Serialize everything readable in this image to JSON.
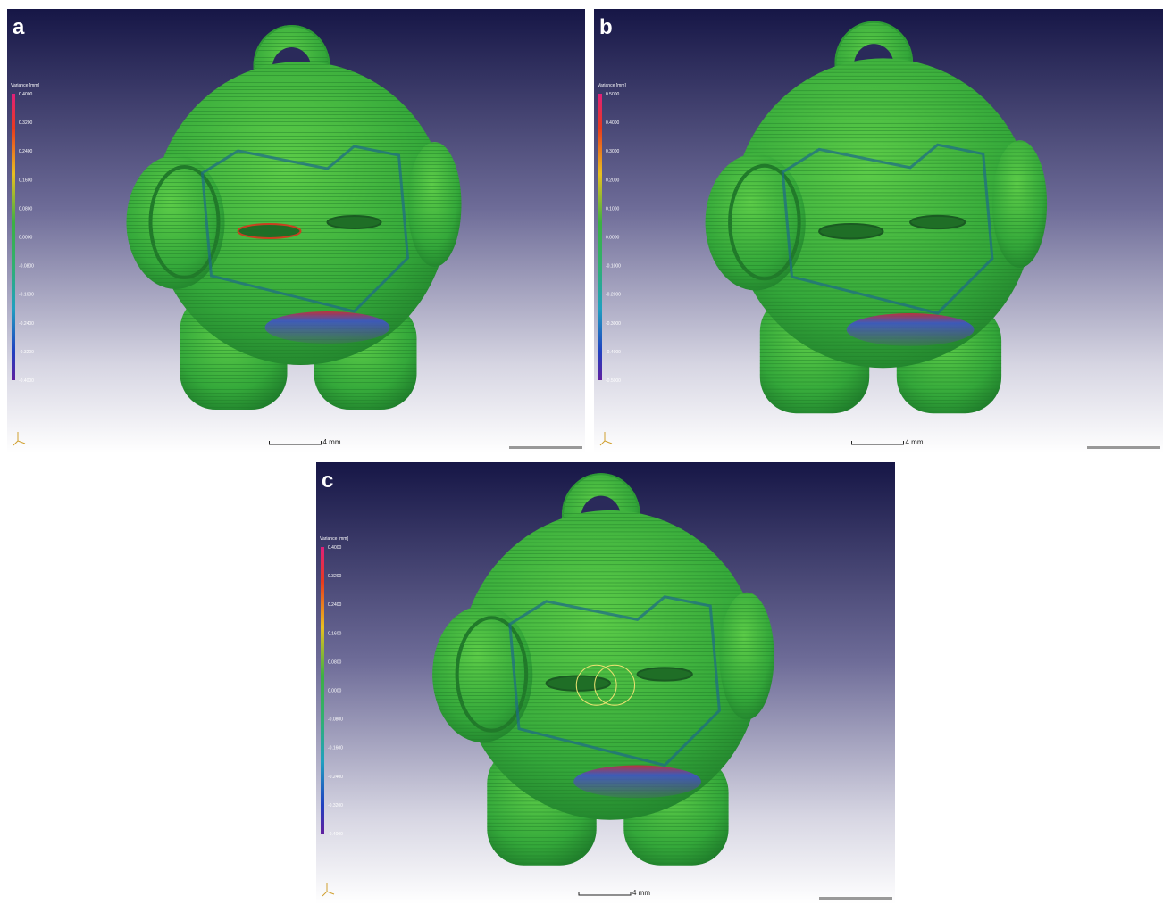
{
  "panels": [
    {
      "label": "a",
      "legend_title": "Variance [mm]",
      "legend_ticks": [
        "0.4000",
        "0.3200",
        "0.2400",
        "0.1600",
        "0.0800",
        "0.0000",
        "-0.0800",
        "-0.1600",
        "-0.2400",
        "-0.3200",
        "-0.4000"
      ],
      "scale_label": "4 mm"
    },
    {
      "label": "b",
      "legend_title": "Variance [mm]",
      "legend_ticks": [
        "0.5000",
        "0.4000",
        "0.3000",
        "0.2000",
        "0.1000",
        "0.0000",
        "-0.1000",
        "-0.2000",
        "-0.3000",
        "-0.4000",
        "-0.5000"
      ],
      "scale_label": "4 mm"
    },
    {
      "label": "c",
      "legend_title": "Variance [mm]",
      "legend_ticks": [
        "0.4000",
        "0.3200",
        "0.2400",
        "0.1600",
        "0.0800",
        "0.0000",
        "-0.0800",
        "-0.1600",
        "-0.2400",
        "-0.3200",
        "-0.4000"
      ],
      "scale_label": "4 mm"
    }
  ]
}
